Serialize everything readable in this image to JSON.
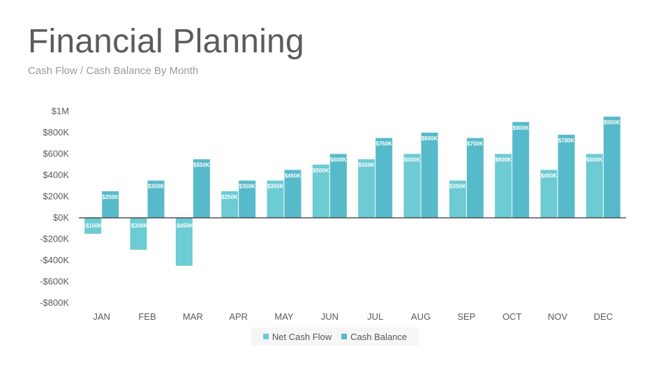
{
  "header": {
    "title": "Financial Planning",
    "subtitle": "Cash Flow / Cash Balance By Month"
  },
  "colors": {
    "net_cash_flow": "#6ccbd3",
    "cash_balance": "#57bacb",
    "axis": "#333333",
    "text": "#5a5a5a"
  },
  "chart_data": {
    "type": "bar",
    "categories": [
      "JAN",
      "FEB",
      "MAR",
      "APR",
      "MAY",
      "JUN",
      "JUL",
      "AUG",
      "SEP",
      "OCT",
      "NOV",
      "DEC"
    ],
    "series": [
      {
        "name": "Net Cash Flow",
        "values": [
          -150,
          -300,
          -450,
          250,
          350,
          500,
          550,
          600,
          350,
          600,
          450,
          600
        ],
        "labels": [
          "-$150K",
          "-$300K",
          "-$450K",
          "$250K",
          "$350K",
          "$500K",
          "$550K",
          "$600K",
          "$350K",
          "$600K",
          "$450K",
          "$600K"
        ]
      },
      {
        "name": "Cash Balance",
        "values": [
          250,
          350,
          550,
          350,
          450,
          600,
          750,
          800,
          750,
          900,
          780,
          950
        ],
        "labels": [
          "$250K",
          "$350K",
          "$550K",
          "$350K",
          "$450K",
          "$600K",
          "$750K",
          "$800K",
          "$750K",
          "$900K",
          "$780K",
          "$950K"
        ]
      }
    ],
    "yunit": "K",
    "ylim": [
      -800,
      1000
    ],
    "yticks": [
      1000,
      800,
      600,
      400,
      200,
      0,
      -200,
      -400,
      -600,
      -800
    ],
    "ytick_labels": [
      "$1M",
      "$800K",
      "$600K",
      "$400K",
      "$200K",
      "$0K",
      "-$200K",
      "-$400K",
      "-$600K",
      "-$800K"
    ],
    "legend": "bottom"
  }
}
